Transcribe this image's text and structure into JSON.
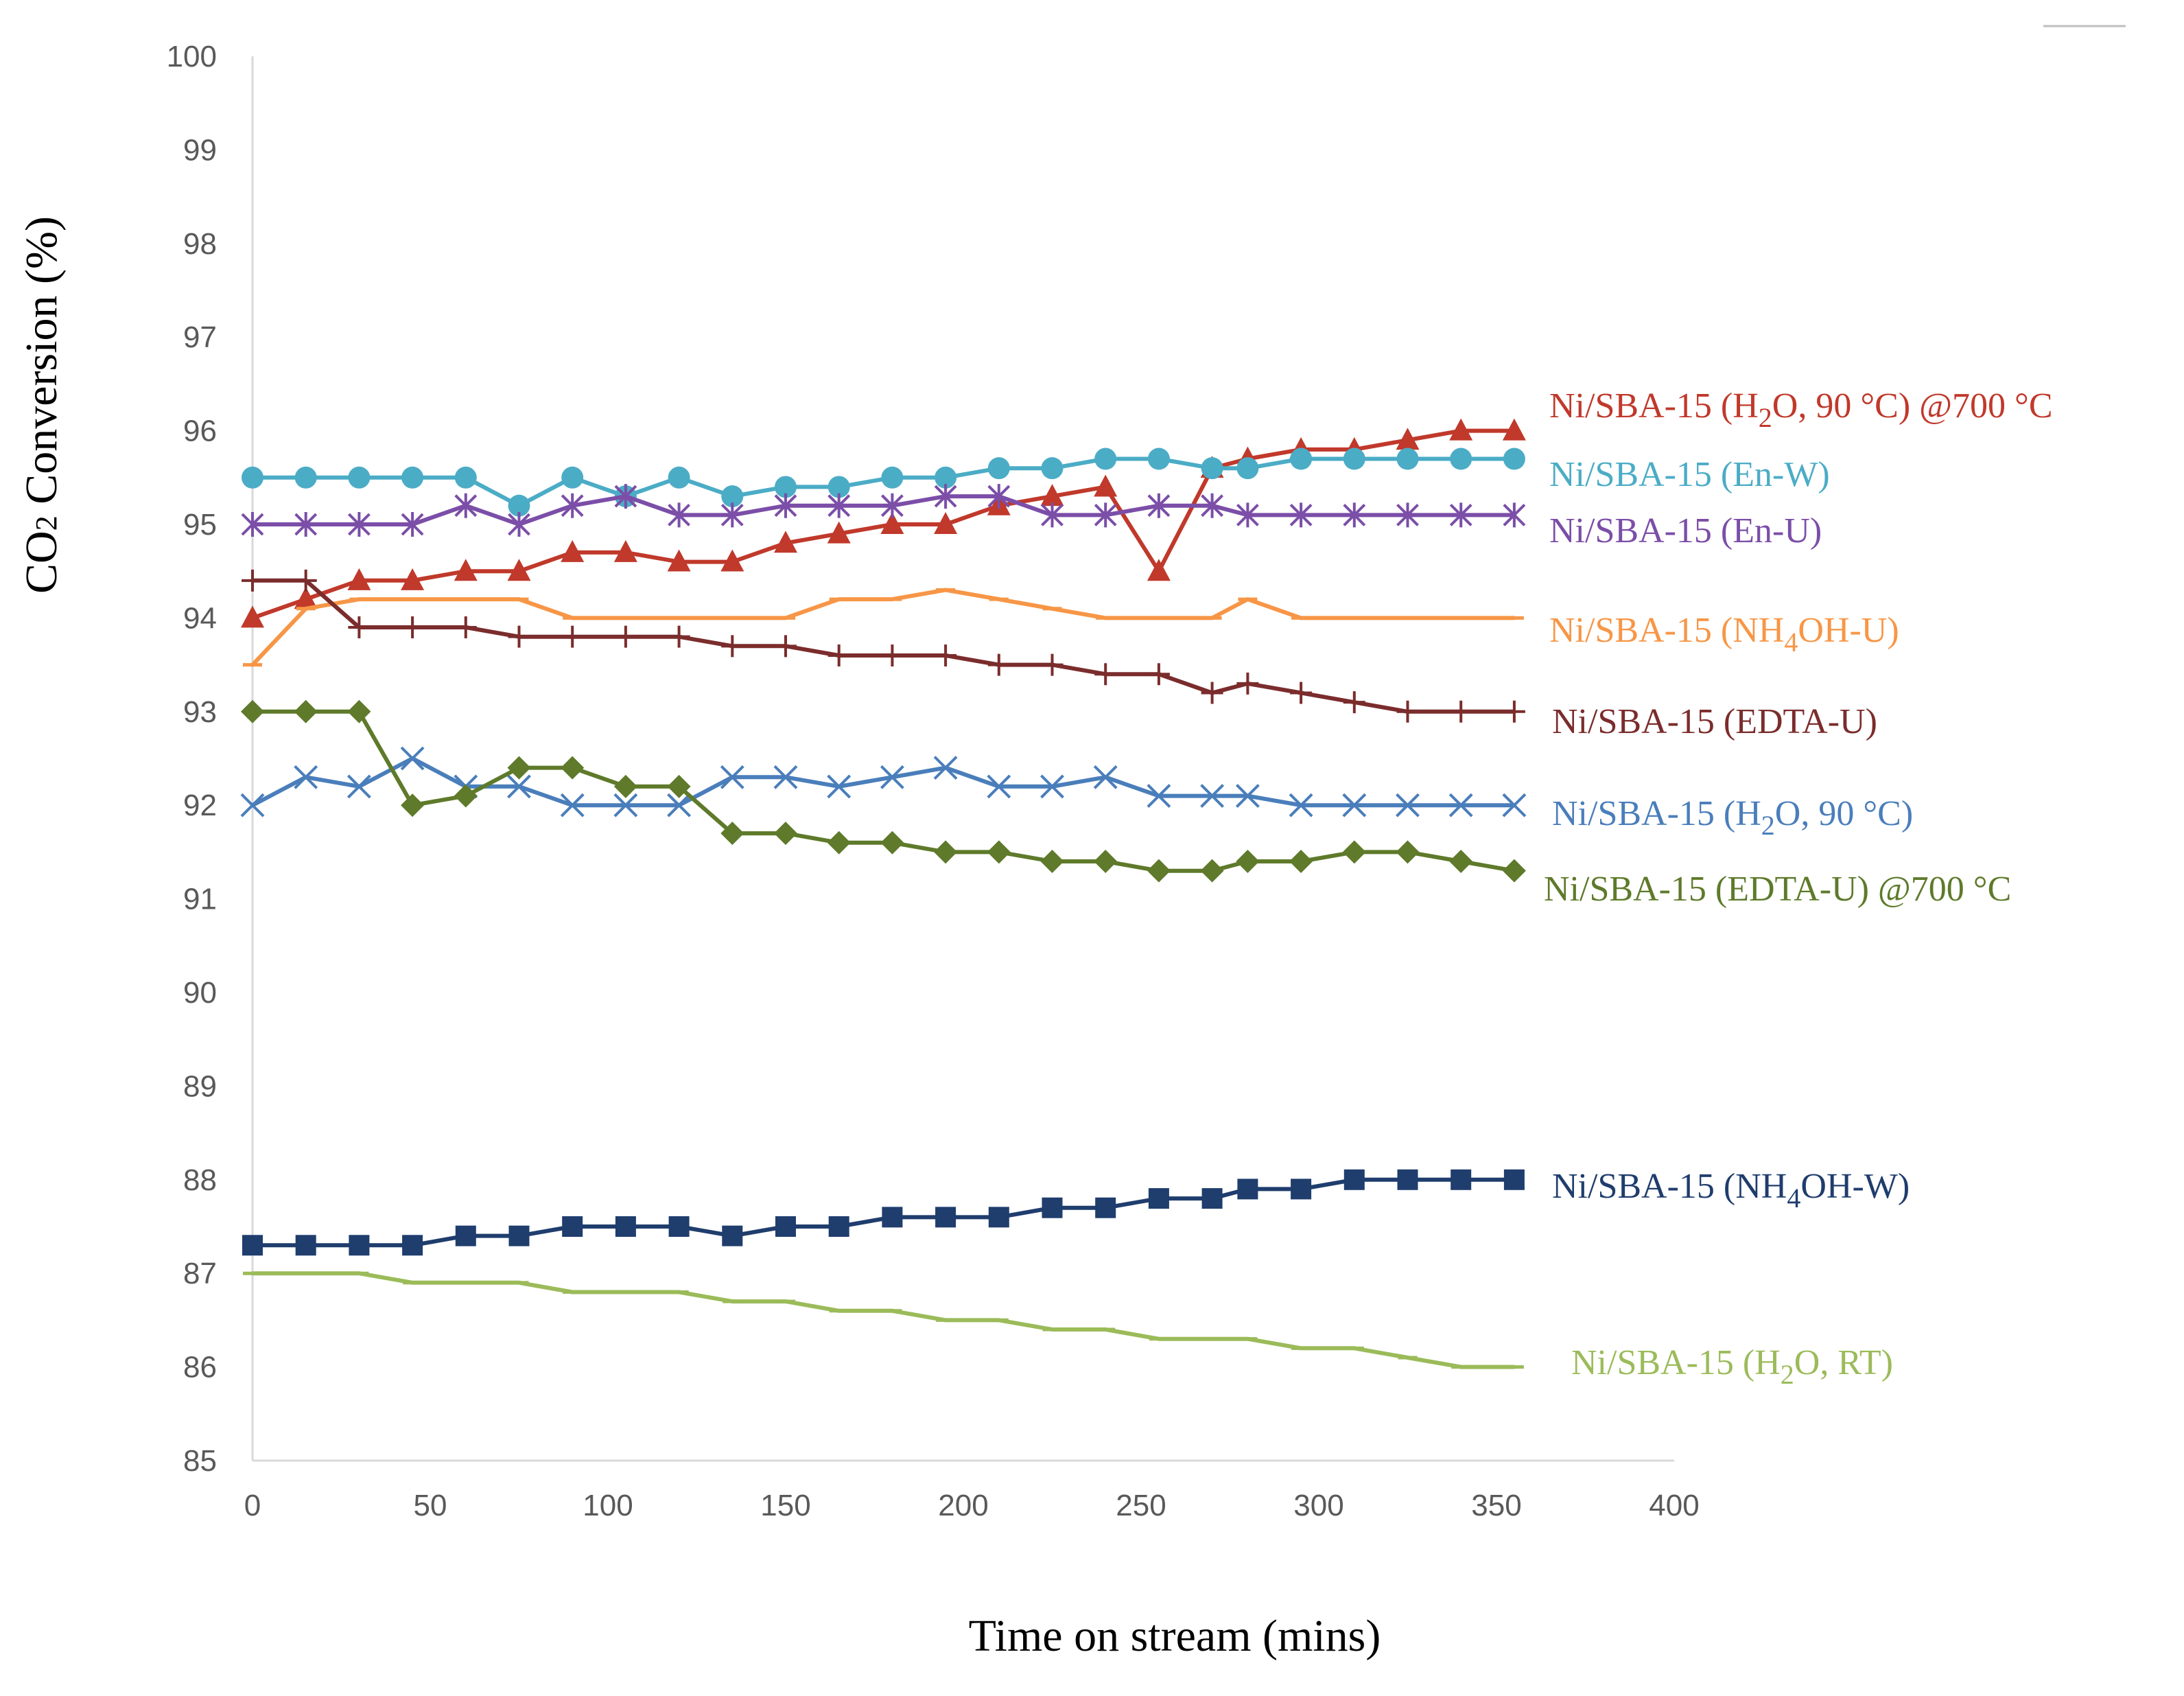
{
  "chart_data": {
    "type": "line",
    "title": "",
    "xlabel": "Time on stream (mins)",
    "ylabel_parts": [
      "CO",
      "2",
      " Conversion (%)"
    ],
    "xlim": [
      0,
      400
    ],
    "ylim": [
      85,
      100
    ],
    "xticks": [
      "0",
      "50",
      "100",
      "150",
      "200",
      "250",
      "300",
      "350",
      "400"
    ],
    "yticks": [
      "85",
      "86",
      "87",
      "88",
      "89",
      "90",
      "91",
      "92",
      "93",
      "94",
      "95",
      "96",
      "97",
      "98",
      "99",
      "100"
    ],
    "grid": false,
    "legend": "direct labels at right end of each series",
    "series": [
      {
        "name": "Ni/SBA-15 (H2O, 90 °C) @700 °C",
        "label_parts": [
          "Ni/SBA-15 (H",
          "2",
          "O, 90 °C) @700 °C"
        ],
        "color": "#c0392b",
        "marker": "triangle",
        "x": [
          0,
          15,
          30,
          45,
          60,
          75,
          90,
          105,
          120,
          135,
          150,
          165,
          180,
          195,
          210,
          225,
          240,
          255,
          270,
          280,
          295,
          310,
          325,
          340,
          355
        ],
        "y": [
          94.0,
          94.2,
          94.4,
          94.4,
          94.5,
          94.5,
          94.7,
          94.7,
          94.6,
          94.6,
          94.8,
          94.9,
          95.0,
          95.0,
          95.2,
          95.3,
          95.4,
          94.5,
          95.6,
          95.7,
          95.8,
          95.8,
          95.9,
          96.0,
          96.0
        ]
      },
      {
        "name": "Ni/SBA-15 (En-W)",
        "label_parts": [
          "Ni/SBA-15 (En-W)"
        ],
        "color": "#4bacc6",
        "marker": "circle",
        "x": [
          0,
          15,
          30,
          45,
          60,
          75,
          90,
          105,
          120,
          135,
          150,
          165,
          180,
          195,
          210,
          225,
          240,
          255,
          270,
          280,
          295,
          310,
          325,
          340,
          355
        ],
        "y": [
          95.5,
          95.5,
          95.5,
          95.5,
          95.5,
          95.2,
          95.5,
          95.3,
          95.5,
          95.3,
          95.4,
          95.4,
          95.5,
          95.5,
          95.6,
          95.6,
          95.7,
          95.7,
          95.6,
          95.6,
          95.7,
          95.7,
          95.7,
          95.7,
          95.7
        ]
      },
      {
        "name": "Ni/SBA-15 (En-U)",
        "label_parts": [
          "Ni/SBA-15 (En-U)"
        ],
        "color": "#7b4ea8",
        "marker": "asterisk",
        "x": [
          0,
          15,
          30,
          45,
          60,
          75,
          90,
          105,
          120,
          135,
          150,
          165,
          180,
          195,
          210,
          225,
          240,
          255,
          270,
          280,
          295,
          310,
          325,
          340,
          355
        ],
        "y": [
          95.0,
          95.0,
          95.0,
          95.0,
          95.2,
          95.0,
          95.2,
          95.3,
          95.1,
          95.1,
          95.2,
          95.2,
          95.2,
          95.3,
          95.3,
          95.1,
          95.1,
          95.2,
          95.2,
          95.1,
          95.1,
          95.1,
          95.1,
          95.1,
          95.1
        ]
      },
      {
        "name": "Ni/SBA-15 (NH4OH-U)",
        "label_parts": [
          "Ni/SBA-15 (NH",
          "4",
          "OH-U)"
        ],
        "color": "#f79646",
        "marker": "dash",
        "x": [
          0,
          15,
          30,
          45,
          60,
          75,
          90,
          105,
          120,
          135,
          150,
          165,
          180,
          195,
          210,
          225,
          240,
          255,
          270,
          280,
          295,
          310,
          325,
          340,
          355
        ],
        "y": [
          93.5,
          94.1,
          94.2,
          94.2,
          94.2,
          94.2,
          94.0,
          94.0,
          94.0,
          94.0,
          94.0,
          94.2,
          94.2,
          94.3,
          94.2,
          94.1,
          94.0,
          94.0,
          94.0,
          94.2,
          94.0,
          94.0,
          94.0,
          94.0,
          94.0
        ]
      },
      {
        "name": "Ni/SBA-15 (EDTA-U)",
        "label_parts": [
          "Ni/SBA-15 (EDTA-U)"
        ],
        "color": "#7b2c2c",
        "marker": "plus",
        "x": [
          0,
          15,
          30,
          45,
          60,
          75,
          90,
          105,
          120,
          135,
          150,
          165,
          180,
          195,
          210,
          225,
          240,
          255,
          270,
          280,
          295,
          310,
          325,
          340,
          355
        ],
        "y": [
          94.4,
          94.4,
          93.9,
          93.9,
          93.9,
          93.8,
          93.8,
          93.8,
          93.8,
          93.7,
          93.7,
          93.6,
          93.6,
          93.6,
          93.5,
          93.5,
          93.4,
          93.4,
          93.2,
          93.3,
          93.2,
          93.1,
          93.0,
          93.0,
          93.0
        ]
      },
      {
        "name": "Ni/SBA-15 (H2O, 90 °C)",
        "label_parts": [
          "Ni/SBA-15 (H",
          "2",
          "O, 90 °C)"
        ],
        "color": "#4a7ebb",
        "marker": "x",
        "x": [
          0,
          15,
          30,
          45,
          60,
          75,
          90,
          105,
          120,
          135,
          150,
          165,
          180,
          195,
          210,
          225,
          240,
          255,
          270,
          280,
          295,
          310,
          325,
          340,
          355
        ],
        "y": [
          92.0,
          92.3,
          92.2,
          92.5,
          92.2,
          92.2,
          92.0,
          92.0,
          92.0,
          92.3,
          92.3,
          92.2,
          92.3,
          92.4,
          92.2,
          92.2,
          92.3,
          92.1,
          92.1,
          92.1,
          92.0,
          92.0,
          92.0,
          92.0,
          92.0
        ]
      },
      {
        "name": "Ni/SBA-15 (EDTA-U) @700 °C",
        "label_parts": [
          "Ni/SBA-15 (EDTA-U) @700 °C"
        ],
        "color": "#5e7a2a",
        "marker": "diamond",
        "x": [
          0,
          15,
          30,
          45,
          60,
          75,
          90,
          105,
          120,
          135,
          150,
          165,
          180,
          195,
          210,
          225,
          240,
          255,
          270,
          280,
          295,
          310,
          325,
          340,
          355
        ],
        "y": [
          93.0,
          93.0,
          93.0,
          92.0,
          92.1,
          92.4,
          92.4,
          92.2,
          92.2,
          91.7,
          91.7,
          91.6,
          91.6,
          91.5,
          91.5,
          91.4,
          91.4,
          91.3,
          91.3,
          91.4,
          91.4,
          91.5,
          91.5,
          91.4,
          91.3
        ]
      },
      {
        "name": "Ni/SBA-15 (NH4OH-W)",
        "label_parts": [
          "Ni/SBA-15 (NH",
          "4",
          "OH-W)"
        ],
        "color": "#1f3d6d",
        "marker": "square",
        "x": [
          0,
          15,
          30,
          45,
          60,
          75,
          90,
          105,
          120,
          135,
          150,
          165,
          180,
          195,
          210,
          225,
          240,
          255,
          270,
          280,
          295,
          310,
          325,
          340,
          355
        ],
        "y": [
          87.3,
          87.3,
          87.3,
          87.3,
          87.4,
          87.4,
          87.5,
          87.5,
          87.5,
          87.4,
          87.5,
          87.5,
          87.6,
          87.6,
          87.6,
          87.7,
          87.7,
          87.8,
          87.8,
          87.9,
          87.9,
          88.0,
          88.0,
          88.0,
          88.0
        ]
      },
      {
        "name": "Ni/SBA-15 (H2O, RT)",
        "label_parts": [
          "Ni/SBA-15 (H",
          "2",
          "O, RT)"
        ],
        "color": "#9bbb59",
        "marker": "dash",
        "x": [
          0,
          15,
          30,
          45,
          60,
          75,
          90,
          105,
          120,
          135,
          150,
          165,
          180,
          195,
          210,
          225,
          240,
          255,
          270,
          280,
          295,
          310,
          325,
          340,
          355
        ],
        "y": [
          87.0,
          87.0,
          87.0,
          86.9,
          86.9,
          86.9,
          86.8,
          86.8,
          86.8,
          86.7,
          86.7,
          86.6,
          86.6,
          86.5,
          86.5,
          86.4,
          86.4,
          86.3,
          86.3,
          86.3,
          86.2,
          86.2,
          86.1,
          86.0,
          86.0
        ]
      }
    ]
  }
}
